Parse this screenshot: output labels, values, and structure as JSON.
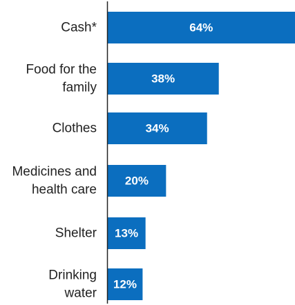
{
  "chart_data": {
    "type": "bar",
    "orientation": "horizontal",
    "categories": [
      "Cash*",
      "Food for the family",
      "Clothes",
      "Medicines and health care",
      "Shelter",
      "Drinking water"
    ],
    "category_lines": [
      [
        "Cash*"
      ],
      [
        "Food for the",
        "family"
      ],
      [
        "Clothes"
      ],
      [
        "Medicines and",
        "health care"
      ],
      [
        "Shelter"
      ],
      [
        "Drinking",
        "water"
      ]
    ],
    "values": [
      64,
      38,
      34,
      20,
      13,
      12
    ],
    "value_labels": [
      "64%",
      "38%",
      "34%",
      "20%",
      "13%",
      "12%"
    ],
    "xlim": [
      0,
      64
    ],
    "grid": false,
    "bar_color": "#0b6ebf",
    "axis_color": "#222222"
  }
}
